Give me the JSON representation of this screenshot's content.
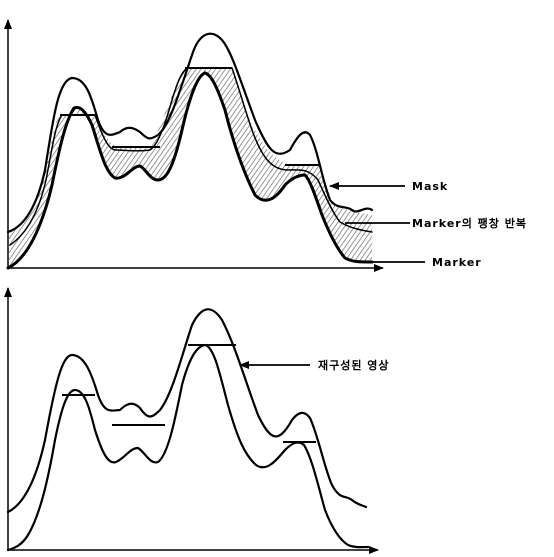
{
  "top_panel": {
    "labels": {
      "mask": "Mask",
      "marker_dilation": "Marker의 팽창 반복",
      "marker": "Marker"
    }
  },
  "bottom_panel": {
    "labels": {
      "reconstructed": "재구성된 영상"
    }
  },
  "colors": {
    "ink": "#000000",
    "hatch": "#555555",
    "background": "#ffffff"
  }
}
